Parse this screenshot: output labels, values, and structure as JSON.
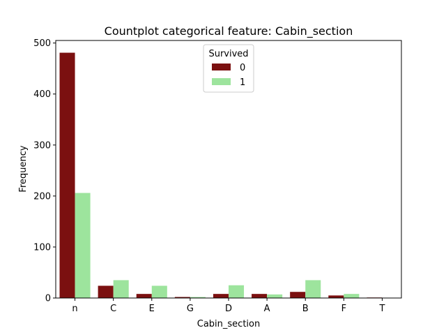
{
  "chart_data": {
    "type": "bar",
    "title": "Countplot categorical feature: Cabin_section",
    "xlabel": "Cabin_section",
    "ylabel": "Frequency",
    "categories": [
      "n",
      "C",
      "E",
      "G",
      "D",
      "A",
      "B",
      "F",
      "T"
    ],
    "series": [
      {
        "name": "0",
        "color": "#7b1010",
        "values": [
          481,
          24,
          8,
          2,
          8,
          8,
          12,
          5,
          1
        ]
      },
      {
        "name": "1",
        "color": "#9de49d",
        "values": [
          206,
          35,
          24,
          2,
          25,
          7,
          35,
          8,
          0
        ]
      }
    ],
    "ylim": [
      0,
      505
    ],
    "yticks": [
      0,
      100,
      200,
      300,
      400,
      500
    ],
    "legend": {
      "title": "Survived",
      "placement": "upper-center"
    },
    "grid": false
  }
}
